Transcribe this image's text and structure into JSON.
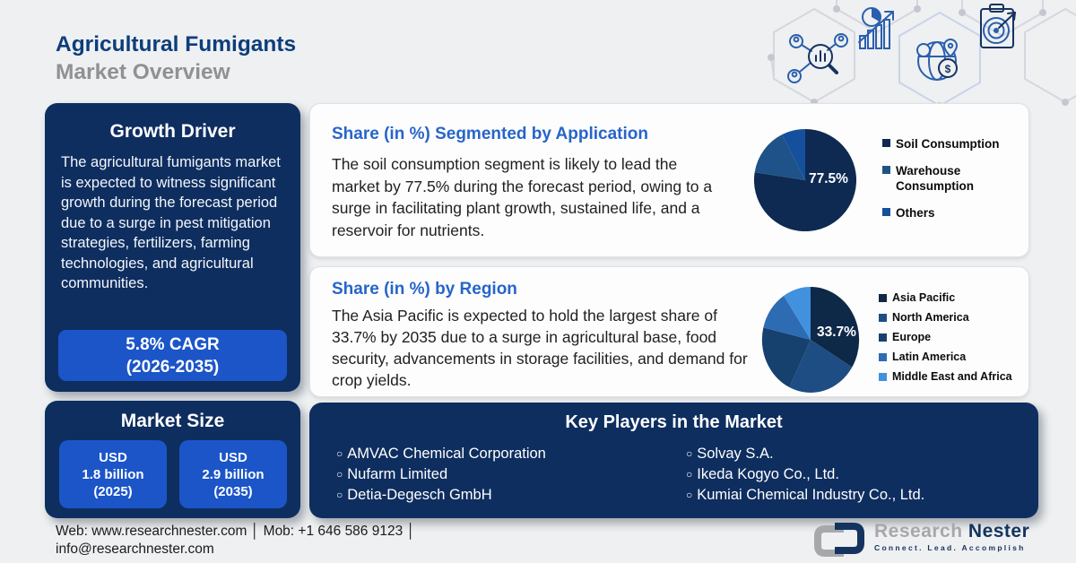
{
  "header": {
    "title_line1": "Agricultural Fumigants",
    "title_line2": "Market Overview"
  },
  "growth_driver": {
    "title": "Growth Driver",
    "body": "The agricultural fumigants market is expected to witness significant growth during the forecast period due to a surge in pest mitigation strategies, fertilizers, farming technologies, and agricultural communities.",
    "cagr_line1": "5.8% CAGR",
    "cagr_line2": "(2026-2035)"
  },
  "application_card": {
    "body": "The soil consumption segment is likely to lead the market by 77.5% during the forecast period, owing to a surge in facilitating plant growth, sustained life, and a reservoir for nutrients."
  },
  "region_card": {
    "body": "The Asia Pacific is expected to hold the largest share of 33.7% by 2035 due to a surge in agricultural base, food security, advancements in storage facilities, and demand for crop yields."
  },
  "market_size": {
    "title": "Market Size",
    "boxes": [
      {
        "line1": "USD",
        "line2": "1.8 billion",
        "line3": "(2025)"
      },
      {
        "line1": "USD",
        "line2": "2.9 billion",
        "line3": "(2035)"
      }
    ]
  },
  "key_players": {
    "title": "Key Players in the Market",
    "column1": [
      "AMVAC Chemical Corporation",
      "Nufarm Limited",
      "Detia-Degesch GmbH"
    ],
    "column2": [
      "Solvay S.A.",
      "Ikeda Kogyo Co., Ltd.",
      "Kumiai Chemical Industry Co., Ltd."
    ]
  },
  "footer": {
    "line1": "Web: www.researchnester.com │ Mob: +1 646 586 9123 │",
    "line2": "info@researchnester.com",
    "logo_research": "Research",
    "logo_nester": "Nester",
    "tagline": "Connect. Lead. Accomplish"
  },
  "decor_icons": [
    "market-analysis-icon",
    "growth-chart-icon",
    "global-market-icon",
    "target-clipboard-icon"
  ],
  "colors": {
    "navy_panel": "#0e2e5f",
    "accent_blue": "#1b55c8",
    "card_title_blue": "#2765c8",
    "page_title_navy": "#0d3d7c",
    "page_title_gray": "#8f9193",
    "background": "#eef0f1"
  },
  "chart_data": [
    {
      "type": "pie",
      "title": "Share (in %) Segmented by Application",
      "labels": [
        "Soil Consumption",
        "Warehouse Consumption",
        "Others"
      ],
      "values": [
        77.5,
        15,
        7.5
      ],
      "colors": [
        "#0e2a52",
        "#1f5288",
        "#14509c"
      ],
      "label_text": "77.5%",
      "legend_position": "right"
    },
    {
      "type": "pie",
      "title": "Share (in %) by Region",
      "labels": [
        "Asia Pacific",
        "North America",
        "Europe",
        "Latin America",
        "Middle East and Africa"
      ],
      "values": [
        33.7,
        23.5,
        21.5,
        12,
        9.3
      ],
      "colors": [
        "#0e2848",
        "#1d4d82",
        "#16406e",
        "#2d6cb3",
        "#4191de"
      ],
      "label_text": "33.7%",
      "legend_position": "right"
    }
  ]
}
